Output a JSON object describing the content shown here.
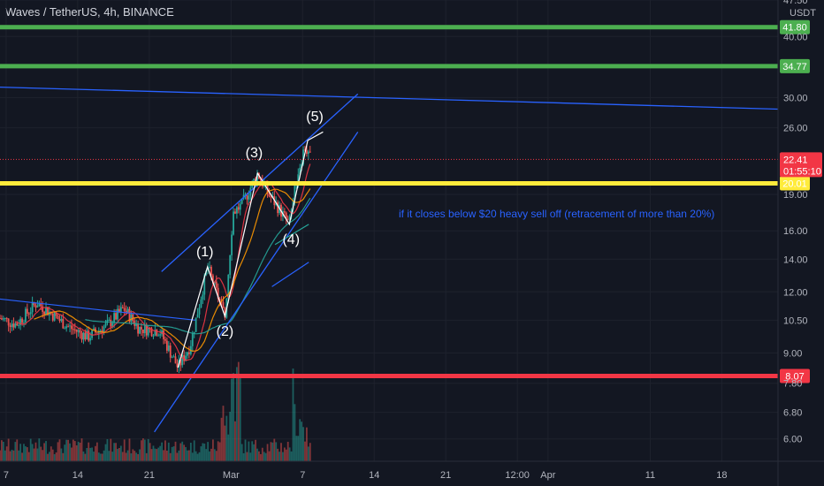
{
  "header": {
    "title": "Waves / TetherUS, 4h, BINANCE"
  },
  "chart_data": {
    "type": "candlestick",
    "title": "Waves / TetherUS, 4h, BINANCE",
    "currency": "USDT",
    "y_scale": "log",
    "ylim": [
      5.4,
      47.5
    ],
    "y_ticks": [
      "6.00",
      "6.80",
      "7.80",
      "9.00",
      "10.50",
      "12.00",
      "14.00",
      "16.00",
      "19.00",
      "26.00",
      "30.00",
      "40.00",
      "47.50"
    ],
    "x_ticks": [
      "7",
      "14",
      "21",
      "Mar",
      "7",
      "14",
      "21",
      "12:00",
      "Apr",
      "11",
      "18"
    ],
    "x_tick_values": [
      0,
      7,
      14,
      22,
      29,
      36,
      43,
      50,
      53,
      63,
      70
    ],
    "xlim": [
      -0.6,
      75.5
    ],
    "horizontal_levels": [
      {
        "value": 41.8,
        "label": "41.80",
        "color": "#4caf50"
      },
      {
        "value": 34.77,
        "label": "34.77",
        "color": "#4caf50"
      },
      {
        "value": 20.01,
        "label": "20.01",
        "color": "#ffeb3b"
      },
      {
        "value": 8.07,
        "label": "8.07",
        "color": "#f23645"
      }
    ],
    "last_price": {
      "value": 22.41,
      "label": "22.41",
      "countdown": "01:55:10",
      "color": "#f23645"
    },
    "elliott_wave": [
      {
        "label": "(1)",
        "x": 19.7,
        "y": 13.5
      },
      {
        "label": "(2)",
        "x": 21.4,
        "y": 10.7
      },
      {
        "label": "(3)",
        "x": 24.6,
        "y": 21.0
      },
      {
        "label": "(4)",
        "x": 27.7,
        "y": 16.5
      },
      {
        "label": "(5)",
        "x": 29.5,
        "y": 24.5
      }
    ],
    "wave_start": {
      "x": 16.8,
      "y": 8.4
    },
    "annotation": "if it closes below $20 heavy sell off (retracement of more than 20%)"
  }
}
